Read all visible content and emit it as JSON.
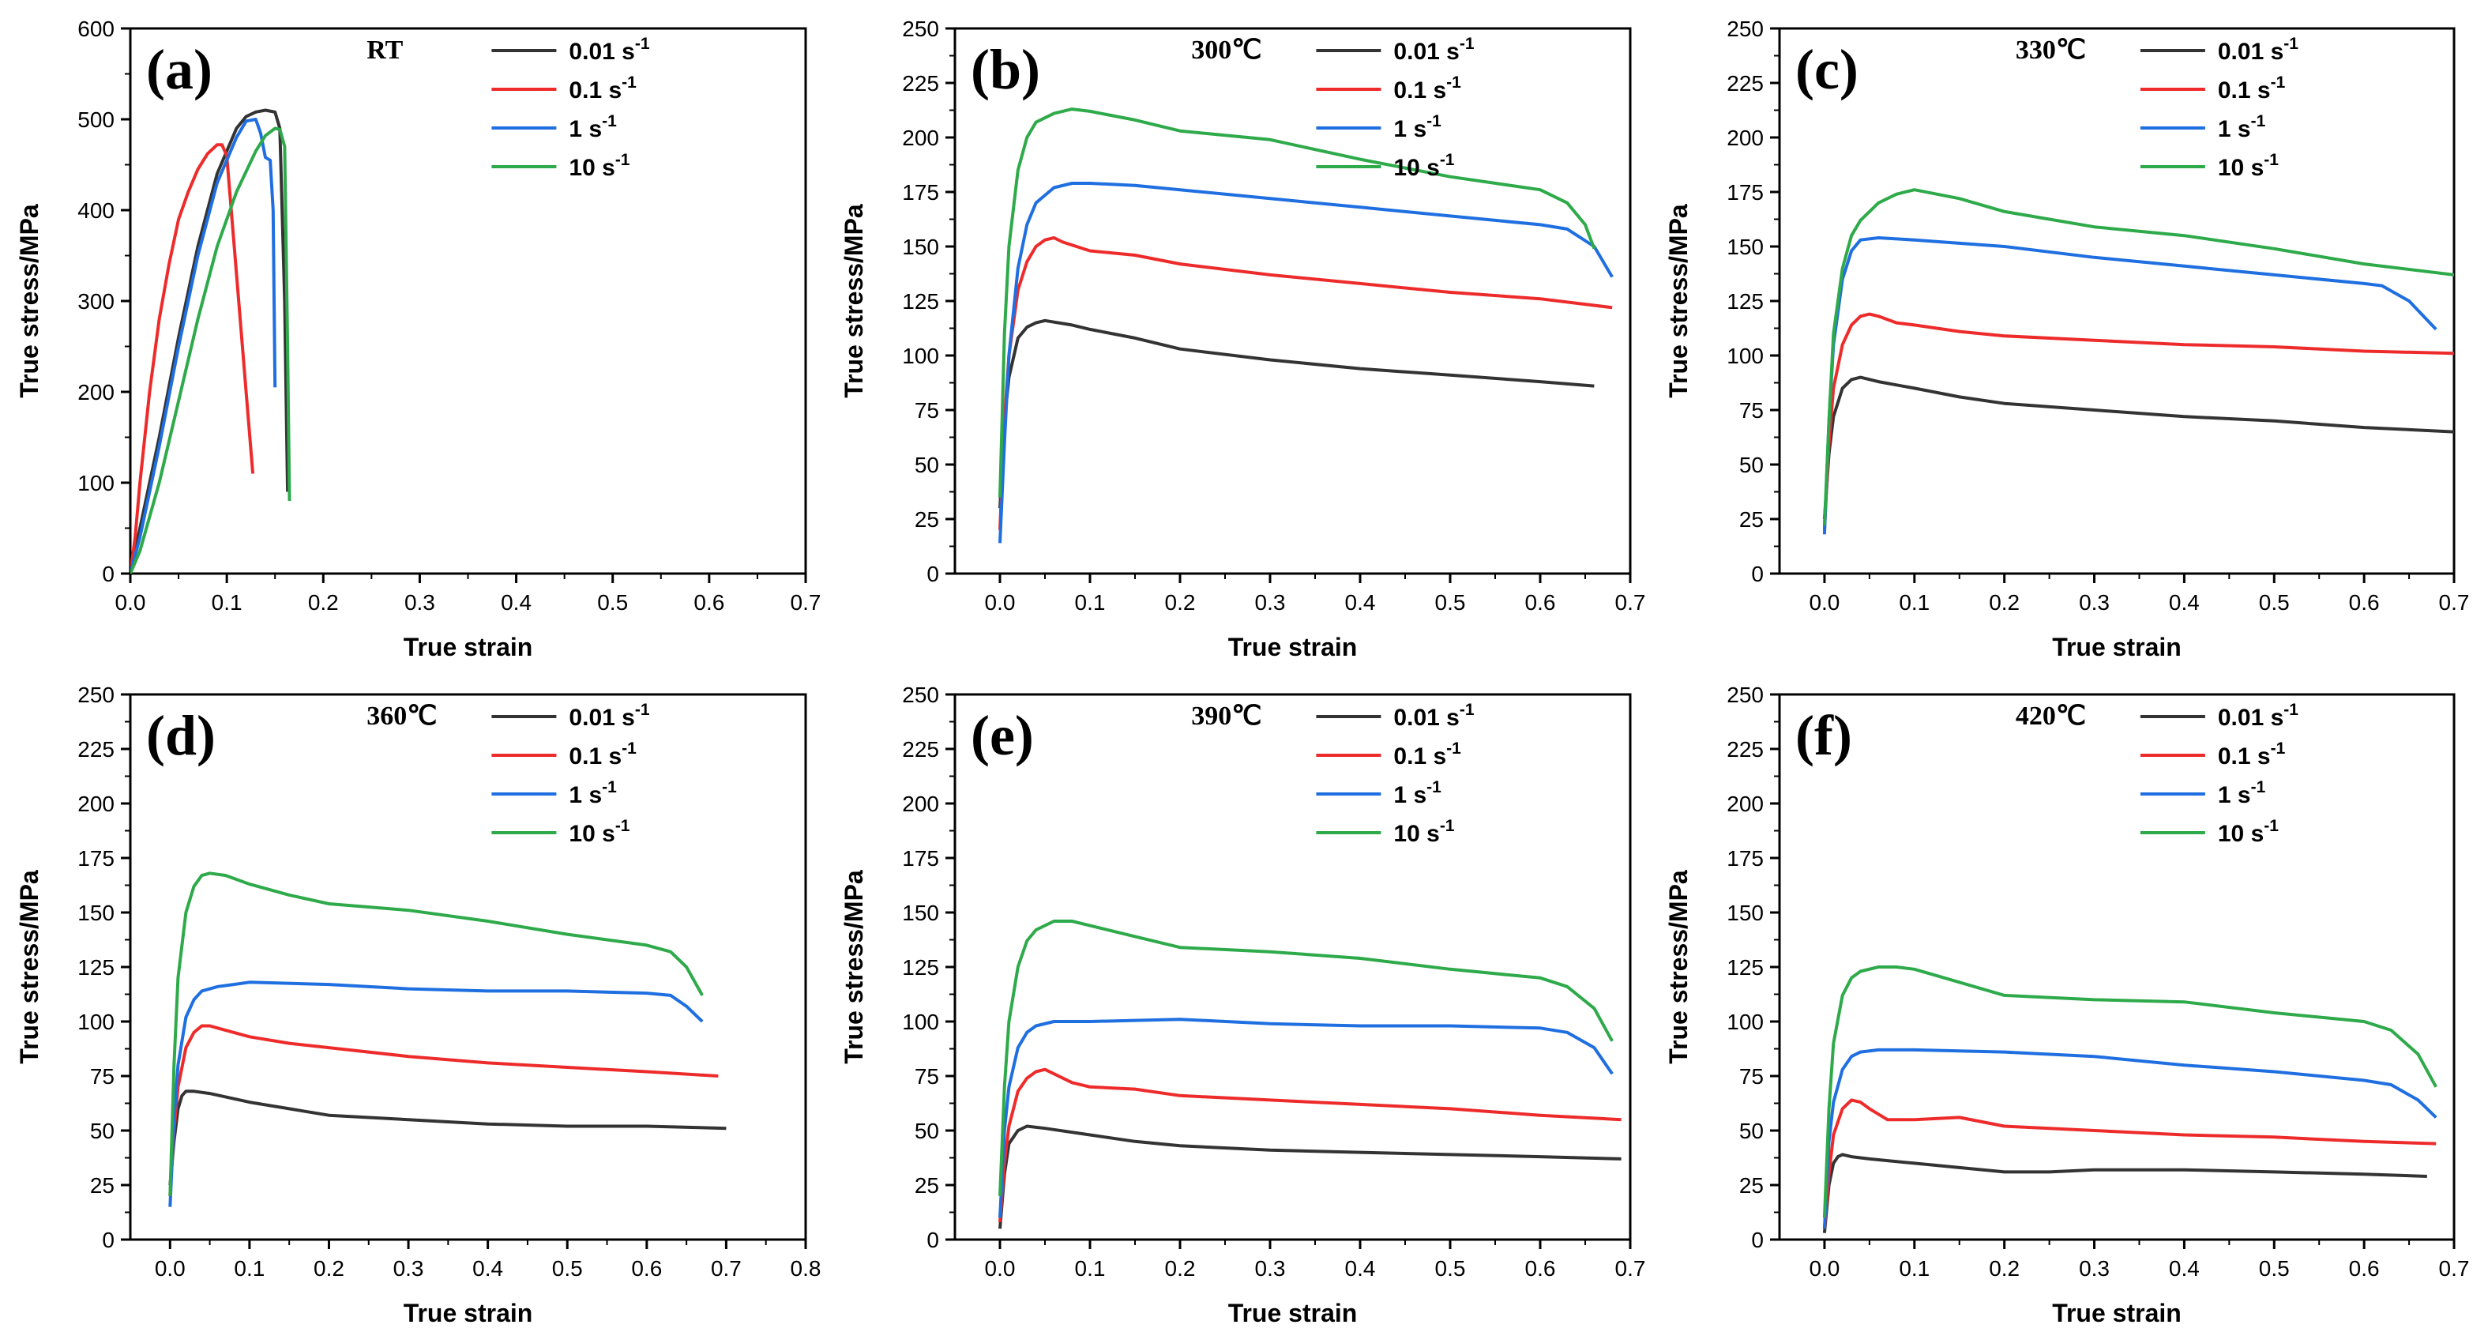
{
  "colors": {
    "0.01 s-1": "#333333",
    "0.1 s-1": "#ee2b2b",
    "1 s-1": "#1f6fe0",
    "10 s-1": "#2eaa4a"
  },
  "legend_labels": [
    {
      "text": "0.01 s",
      "sup": "-1"
    },
    {
      "text": "0.1 s",
      "sup": "-1"
    },
    {
      "text": "1 s",
      "sup": "-1"
    },
    {
      "text": "10 s",
      "sup": "-1"
    }
  ],
  "chart_data": [
    {
      "type": "line",
      "panel": "(a)",
      "annotation": "RT",
      "xlabel": "True strain",
      "ylabel": "True stress/MPa",
      "xlim": [
        0,
        0.7
      ],
      "ylim": [
        0,
        600
      ],
      "xticks": [
        "0.0",
        "0.1",
        "0.2",
        "0.3",
        "0.4",
        "0.5",
        "0.6",
        "0.7"
      ],
      "yticks": [
        "0",
        "100",
        "200",
        "300",
        "400",
        "500",
        "600"
      ],
      "series": [
        {
          "name": "0.01 s-1",
          "x": [
            0,
            0.01,
            0.03,
            0.05,
            0.07,
            0.09,
            0.11,
            0.12,
            0.13,
            0.14,
            0.15,
            0.155,
            0.16,
            0.163
          ],
          "y": [
            0,
            50,
            150,
            260,
            360,
            440,
            490,
            503,
            508,
            510,
            508,
            490,
            300,
            90
          ]
        },
        {
          "name": "0.1 s-1",
          "x": [
            0,
            0.005,
            0.01,
            0.02,
            0.03,
            0.04,
            0.05,
            0.06,
            0.07,
            0.08,
            0.09,
            0.095,
            0.1,
            0.11,
            0.12,
            0.127
          ],
          "y": [
            0,
            40,
            100,
            200,
            280,
            340,
            390,
            420,
            445,
            462,
            472,
            472,
            460,
            330,
            200,
            110
          ]
        },
        {
          "name": "1 s-1",
          "x": [
            0,
            0.01,
            0.03,
            0.05,
            0.07,
            0.09,
            0.11,
            0.12,
            0.13,
            0.135,
            0.14,
            0.145,
            0.148,
            0.15
          ],
          "y": [
            0,
            40,
            140,
            250,
            350,
            430,
            480,
            498,
            500,
            485,
            458,
            455,
            400,
            205
          ]
        },
        {
          "name": "10 s-1",
          "x": [
            0,
            0.01,
            0.03,
            0.05,
            0.07,
            0.09,
            0.11,
            0.13,
            0.14,
            0.15,
            0.155,
            0.16,
            0.163,
            0.165
          ],
          "y": [
            0,
            25,
            100,
            190,
            280,
            360,
            420,
            465,
            482,
            490,
            489,
            470,
            250,
            80
          ]
        }
      ]
    },
    {
      "type": "line",
      "panel": "(b)",
      "annotation": "300℃",
      "xlabel": "True strain",
      "ylabel": "True stress/MPa",
      "xlim": [
        -0.05,
        0.7
      ],
      "ylim": [
        0,
        250
      ],
      "xticks": [
        "0.0",
        "0.1",
        "0.2",
        "0.3",
        "0.4",
        "0.5",
        "0.6",
        "0.7"
      ],
      "yticks": [
        "0",
        "25",
        "50",
        "75",
        "100",
        "125",
        "150",
        "175",
        "200",
        "225",
        "250"
      ],
      "series": [
        {
          "name": "0.01 s-1",
          "x": [
            0,
            0.005,
            0.01,
            0.02,
            0.03,
            0.04,
            0.05,
            0.08,
            0.1,
            0.15,
            0.2,
            0.3,
            0.4,
            0.5,
            0.6,
            0.66
          ],
          "y": [
            30,
            70,
            90,
            108,
            113,
            115,
            116,
            114,
            112,
            108,
            103,
            98,
            94,
            91,
            88,
            86
          ]
        },
        {
          "name": "0.1 s-1",
          "x": [
            0,
            0.005,
            0.01,
            0.02,
            0.03,
            0.04,
            0.05,
            0.06,
            0.07,
            0.1,
            0.15,
            0.2,
            0.3,
            0.4,
            0.5,
            0.6,
            0.68
          ],
          "y": [
            20,
            70,
            100,
            130,
            143,
            150,
            153,
            154,
            152,
            148,
            146,
            142,
            137,
            133,
            129,
            126,
            122
          ]
        },
        {
          "name": "1 s-1",
          "x": [
            0,
            0.005,
            0.01,
            0.02,
            0.03,
            0.04,
            0.06,
            0.08,
            0.1,
            0.15,
            0.2,
            0.3,
            0.4,
            0.5,
            0.6,
            0.63,
            0.66,
            0.68
          ],
          "y": [
            14,
            60,
            100,
            140,
            160,
            170,
            177,
            179,
            179,
            178,
            176,
            172,
            168,
            164,
            160,
            158,
            150,
            136
          ]
        },
        {
          "name": "10 s-1",
          "x": [
            0,
            0.005,
            0.01,
            0.02,
            0.03,
            0.04,
            0.06,
            0.08,
            0.1,
            0.15,
            0.2,
            0.3,
            0.4,
            0.5,
            0.6,
            0.63,
            0.65,
            0.66
          ],
          "y": [
            35,
            110,
            150,
            185,
            200,
            207,
            211,
            213,
            212,
            208,
            203,
            199,
            190,
            182,
            176,
            170,
            160,
            149
          ]
        }
      ]
    },
    {
      "type": "line",
      "panel": "(c)",
      "annotation": "330℃",
      "xlabel": "True strain",
      "ylabel": "True stress/MPa",
      "xlim": [
        -0.05,
        0.7
      ],
      "ylim": [
        0,
        250
      ],
      "xticks": [
        "0.0",
        "0.1",
        "0.2",
        "0.3",
        "0.4",
        "0.5",
        "0.6",
        "0.7"
      ],
      "yticks": [
        "0",
        "25",
        "50",
        "75",
        "100",
        "125",
        "150",
        "175",
        "200",
        "225",
        "250"
      ],
      "series": [
        {
          "name": "0.01 s-1",
          "x": [
            0,
            0.005,
            0.01,
            0.02,
            0.03,
            0.04,
            0.06,
            0.1,
            0.15,
            0.2,
            0.3,
            0.4,
            0.5,
            0.6,
            0.7
          ],
          "y": [
            25,
            55,
            72,
            85,
            89,
            90,
            88,
            85,
            81,
            78,
            75,
            72,
            70,
            67,
            65
          ]
        },
        {
          "name": "0.1 s-1",
          "x": [
            0,
            0.005,
            0.01,
            0.02,
            0.03,
            0.04,
            0.05,
            0.06,
            0.08,
            0.1,
            0.15,
            0.2,
            0.3,
            0.4,
            0.5,
            0.6,
            0.7
          ],
          "y": [
            20,
            60,
            85,
            105,
            114,
            118,
            119,
            118,
            115,
            114,
            111,
            109,
            107,
            105,
            104,
            102,
            101
          ]
        },
        {
          "name": "1 s-1",
          "x": [
            0,
            0.005,
            0.01,
            0.02,
            0.03,
            0.04,
            0.06,
            0.1,
            0.2,
            0.3,
            0.4,
            0.5,
            0.6,
            0.62,
            0.65,
            0.68
          ],
          "y": [
            18,
            70,
            105,
            135,
            148,
            153,
            154,
            153,
            150,
            145,
            141,
            137,
            133,
            132,
            125,
            112
          ]
        },
        {
          "name": "10 s-1",
          "x": [
            0,
            0.005,
            0.01,
            0.02,
            0.03,
            0.04,
            0.06,
            0.08,
            0.1,
            0.15,
            0.2,
            0.3,
            0.4,
            0.5,
            0.6,
            0.7
          ],
          "y": [
            22,
            70,
            110,
            140,
            155,
            162,
            170,
            174,
            176,
            172,
            166,
            159,
            155,
            149,
            142,
            137
          ]
        }
      ]
    },
    {
      "type": "line",
      "panel": "(d)",
      "annotation": "360℃",
      "xlabel": "True strain",
      "ylabel": "True stress/MPa",
      "xlim": [
        -0.05,
        0.8
      ],
      "ylim": [
        0,
        250
      ],
      "xticks": [
        "0.0",
        "0.1",
        "0.2",
        "0.3",
        "0.4",
        "0.5",
        "0.6",
        "0.7",
        "0.8"
      ],
      "yticks": [
        "0",
        "25",
        "50",
        "75",
        "100",
        "125",
        "150",
        "175",
        "200",
        "225",
        "250"
      ],
      "series": [
        {
          "name": "0.01 s-1",
          "x": [
            0,
            0.005,
            0.01,
            0.015,
            0.02,
            0.03,
            0.05,
            0.1,
            0.15,
            0.2,
            0.3,
            0.4,
            0.5,
            0.6,
            0.7
          ],
          "y": [
            25,
            45,
            60,
            66,
            68,
            68,
            67,
            63,
            60,
            57,
            55,
            53,
            52,
            52,
            51
          ]
        },
        {
          "name": "0.1 s-1",
          "x": [
            0,
            0.005,
            0.01,
            0.02,
            0.03,
            0.04,
            0.05,
            0.06,
            0.1,
            0.15,
            0.2,
            0.3,
            0.4,
            0.5,
            0.6,
            0.69
          ],
          "y": [
            20,
            50,
            70,
            88,
            95,
            98,
            98,
            97,
            93,
            90,
            88,
            84,
            81,
            79,
            77,
            75
          ]
        },
        {
          "name": "1 s-1",
          "x": [
            0,
            0.005,
            0.01,
            0.02,
            0.03,
            0.04,
            0.06,
            0.08,
            0.1,
            0.2,
            0.3,
            0.4,
            0.5,
            0.6,
            0.63,
            0.65,
            0.67
          ],
          "y": [
            15,
            55,
            80,
            102,
            110,
            114,
            116,
            117,
            118,
            117,
            115,
            114,
            114,
            113,
            112,
            107,
            100
          ]
        },
        {
          "name": "10 s-1",
          "x": [
            0,
            0.005,
            0.01,
            0.02,
            0.03,
            0.04,
            0.05,
            0.07,
            0.1,
            0.15,
            0.2,
            0.3,
            0.4,
            0.5,
            0.6,
            0.63,
            0.65,
            0.67
          ],
          "y": [
            20,
            80,
            120,
            150,
            162,
            167,
            168,
            167,
            163,
            158,
            154,
            151,
            146,
            140,
            135,
            132,
            125,
            112
          ]
        }
      ]
    },
    {
      "type": "line",
      "panel": "(e)",
      "annotation": "390℃",
      "xlabel": "True strain",
      "ylabel": "True stress/MPa",
      "xlim": [
        -0.05,
        0.7
      ],
      "ylim": [
        0,
        250
      ],
      "xticks": [
        "0.0",
        "0.1",
        "0.2",
        "0.3",
        "0.4",
        "0.5",
        "0.6",
        "0.7"
      ],
      "yticks": [
        "0",
        "25",
        "50",
        "75",
        "100",
        "125",
        "150",
        "175",
        "200",
        "225",
        "250"
      ],
      "series": [
        {
          "name": "0.01 s-1",
          "x": [
            0,
            0.005,
            0.01,
            0.02,
            0.03,
            0.05,
            0.1,
            0.15,
            0.2,
            0.3,
            0.4,
            0.5,
            0.6,
            0.69
          ],
          "y": [
            5,
            30,
            44,
            50,
            52,
            51,
            48,
            45,
            43,
            41,
            40,
            39,
            38,
            37
          ]
        },
        {
          "name": "0.1 s-1",
          "x": [
            0,
            0.005,
            0.01,
            0.02,
            0.03,
            0.04,
            0.05,
            0.06,
            0.08,
            0.1,
            0.15,
            0.2,
            0.3,
            0.4,
            0.5,
            0.6,
            0.69
          ],
          "y": [
            8,
            35,
            52,
            68,
            74,
            77,
            78,
            76,
            72,
            70,
            69,
            66,
            64,
            62,
            60,
            57,
            55
          ]
        },
        {
          "name": "1 s-1",
          "x": [
            0,
            0.005,
            0.01,
            0.02,
            0.03,
            0.04,
            0.06,
            0.1,
            0.2,
            0.3,
            0.4,
            0.5,
            0.6,
            0.63,
            0.66,
            0.68
          ],
          "y": [
            10,
            50,
            70,
            88,
            95,
            98,
            100,
            100,
            101,
            99,
            98,
            98,
            97,
            95,
            88,
            76
          ]
        },
        {
          "name": "10 s-1",
          "x": [
            0,
            0.005,
            0.01,
            0.02,
            0.03,
            0.04,
            0.06,
            0.08,
            0.1,
            0.15,
            0.2,
            0.3,
            0.4,
            0.5,
            0.6,
            0.63,
            0.66,
            0.68
          ],
          "y": [
            20,
            70,
            100,
            125,
            137,
            142,
            146,
            146,
            144,
            139,
            134,
            132,
            129,
            124,
            120,
            116,
            106,
            91
          ]
        }
      ]
    },
    {
      "type": "line",
      "panel": "(f)",
      "annotation": "420℃",
      "xlabel": "True strain",
      "ylabel": "True stress/MPa",
      "xlim": [
        -0.05,
        0.7
      ],
      "ylim": [
        0,
        250
      ],
      "xticks": [
        "0.0",
        "0.1",
        "0.2",
        "0.3",
        "0.4",
        "0.5",
        "0.6",
        "0.7"
      ],
      "yticks": [
        "0",
        "25",
        "50",
        "75",
        "100",
        "125",
        "150",
        "175",
        "200",
        "225",
        "250"
      ],
      "series": [
        {
          "name": "0.01 s-1",
          "x": [
            0,
            0.005,
            0.01,
            0.015,
            0.02,
            0.03,
            0.05,
            0.1,
            0.15,
            0.2,
            0.25,
            0.3,
            0.4,
            0.5,
            0.6,
            0.67
          ],
          "y": [
            3,
            25,
            35,
            38,
            39,
            38,
            37,
            35,
            33,
            31,
            31,
            32,
            32,
            31,
            30,
            29
          ]
        },
        {
          "name": "0.1 s-1",
          "x": [
            0,
            0.005,
            0.01,
            0.02,
            0.03,
            0.04,
            0.05,
            0.07,
            0.1,
            0.15,
            0.2,
            0.3,
            0.4,
            0.5,
            0.6,
            0.68
          ],
          "y": [
            5,
            30,
            48,
            60,
            64,
            63,
            60,
            55,
            55,
            56,
            52,
            50,
            48,
            47,
            45,
            44
          ]
        },
        {
          "name": "1 s-1",
          "x": [
            0,
            0.005,
            0.01,
            0.02,
            0.03,
            0.04,
            0.06,
            0.1,
            0.2,
            0.3,
            0.4,
            0.5,
            0.6,
            0.63,
            0.66,
            0.68
          ],
          "y": [
            5,
            45,
            63,
            78,
            84,
            86,
            87,
            87,
            86,
            84,
            80,
            77,
            73,
            71,
            64,
            56
          ]
        },
        {
          "name": "10 s-1",
          "x": [
            0,
            0.005,
            0.01,
            0.02,
            0.03,
            0.04,
            0.06,
            0.08,
            0.1,
            0.15,
            0.2,
            0.3,
            0.4,
            0.5,
            0.6,
            0.63,
            0.66,
            0.68
          ],
          "y": [
            10,
            60,
            90,
            112,
            120,
            123,
            125,
            125,
            124,
            118,
            112,
            110,
            109,
            104,
            100,
            96,
            85,
            70
          ]
        }
      ]
    }
  ]
}
